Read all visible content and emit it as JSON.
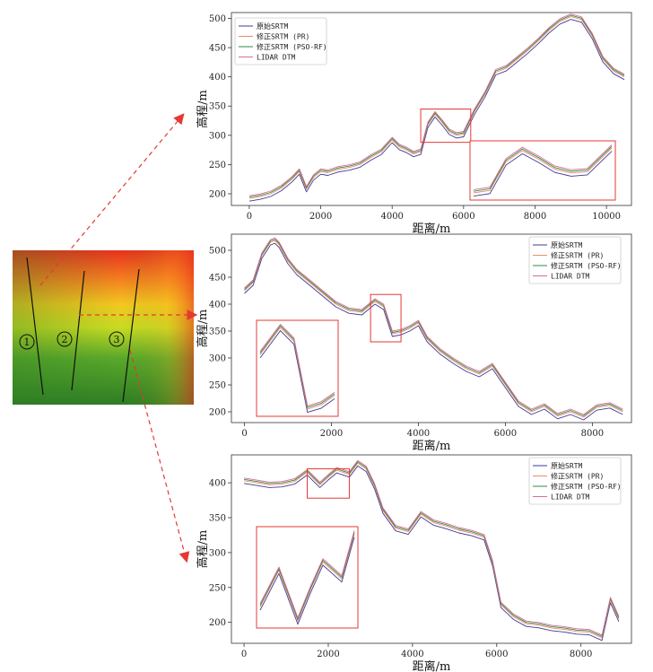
{
  "colors": {
    "original": "#3b3b9a",
    "pr": "#f08a6a",
    "pso": "#2e8b3e",
    "lidar": "#d96b9a",
    "box": "#e53935",
    "arrow": "#e53935"
  },
  "map": {
    "line_labels": [
      "1",
      "2",
      "3"
    ]
  },
  "chart_data": [
    {
      "type": "line",
      "title": "",
      "xlabel": "距离/m",
      "ylabel": "高程/m",
      "xlim": [
        -500,
        10700
      ],
      "ylim": [
        180,
        510
      ],
      "xticks": [
        0,
        2000,
        4000,
        6000,
        8000,
        10000
      ],
      "yticks": [
        200,
        250,
        300,
        350,
        400,
        450,
        500
      ],
      "legend": [
        "原始SRTM",
        "修正SRTM (PR)",
        "修正SRTM (PSO-RF)",
        "LIDAR DTM"
      ],
      "legend_position": "top-left",
      "profile": {
        "x": [
          0,
          300,
          600,
          900,
          1200,
          1400,
          1600,
          1800,
          2000,
          2200,
          2500,
          2800,
          3100,
          3400,
          3700,
          4000,
          4200,
          4400,
          4600,
          4800,
          5000,
          5200,
          5400,
          5600,
          5800,
          6000,
          6300,
          6600,
          6900,
          7200,
          7500,
          7800,
          8100,
          8400,
          8700,
          9000,
          9300,
          9600,
          9900,
          10200,
          10500
        ],
        "y": [
          192,
          195,
          200,
          210,
          225,
          238,
          208,
          228,
          238,
          236,
          242,
          245,
          250,
          262,
          272,
          292,
          280,
          275,
          268,
          272,
          318,
          336,
          322,
          306,
          300,
          302,
          340,
          370,
          408,
          415,
          430,
          445,
          462,
          480,
          495,
          503,
          498,
          470,
          430,
          410,
          400
        ]
      },
      "zoom_region": {
        "x": [
          4800,
          6200
        ],
        "y": [
          288,
          345
        ]
      }
    },
    {
      "type": "line",
      "title": "",
      "xlabel": "距离/m",
      "ylabel": "高程/m",
      "xlim": [
        -300,
        8900
      ],
      "ylim": [
        180,
        530
      ],
      "xticks": [
        0,
        2000,
        4000,
        6000,
        8000
      ],
      "yticks": [
        200,
        250,
        300,
        350,
        400,
        450,
        500
      ],
      "legend": [
        "原始SRTM",
        "修正SRTM (PR)",
        "修正SRTM (PSO-RF)",
        "LIDAR DTM"
      ],
      "legend_position": "top-right",
      "profile": {
        "x": [
          0,
          200,
          400,
          600,
          700,
          800,
          1000,
          1200,
          1500,
          1800,
          2100,
          2400,
          2700,
          3000,
          3200,
          3400,
          3600,
          3800,
          4000,
          4200,
          4500,
          4800,
          5100,
          5400,
          5700,
          6000,
          6300,
          6600,
          6900,
          7200,
          7500,
          7800,
          8100,
          8400,
          8700
        ],
        "y": [
          425,
          440,
          490,
          515,
          518,
          510,
          480,
          460,
          440,
          420,
          400,
          388,
          385,
          405,
          395,
          345,
          348,
          355,
          365,
          335,
          312,
          295,
          280,
          270,
          285,
          250,
          215,
          200,
          210,
          192,
          200,
          190,
          208,
          212,
          200
        ]
      },
      "zoom_region": {
        "x": [
          2900,
          3600
        ],
        "y": [
          330,
          418
        ]
      }
    },
    {
      "type": "line",
      "title": "",
      "xlabel": "距离/m",
      "ylabel": "高程/m",
      "xlim": [
        -300,
        9200
      ],
      "ylim": [
        170,
        440
      ],
      "xticks": [
        0,
        2000,
        4000,
        6000,
        8000
      ],
      "yticks": [
        200,
        250,
        300,
        350,
        400
      ],
      "legend": [
        "原始SRTM",
        "修正SRTM (PR)",
        "修正SRTM (PSO-RF)",
        "LIDAR DTM"
      ],
      "legend_position": "top-right",
      "profile": {
        "x": [
          0,
          300,
          600,
          900,
          1200,
          1500,
          1800,
          2000,
          2200,
          2500,
          2700,
          2900,
          3100,
          3300,
          3600,
          3900,
          4200,
          4500,
          4800,
          5100,
          5400,
          5700,
          5900,
          6100,
          6400,
          6700,
          7000,
          7300,
          7600,
          7900,
          8200,
          8500,
          8700,
          8900
        ],
        "y": [
          403,
          400,
          397,
          398,
          402,
          415,
          397,
          408,
          418,
          412,
          428,
          420,
          395,
          360,
          335,
          330,
          355,
          343,
          338,
          332,
          328,
          322,
          285,
          225,
          208,
          198,
          196,
          192,
          190,
          187,
          186,
          178,
          232,
          205
        ]
      },
      "zoom_region": {
        "x": [
          1500,
          2500
        ],
        "y": [
          378,
          420
        ]
      }
    }
  ]
}
